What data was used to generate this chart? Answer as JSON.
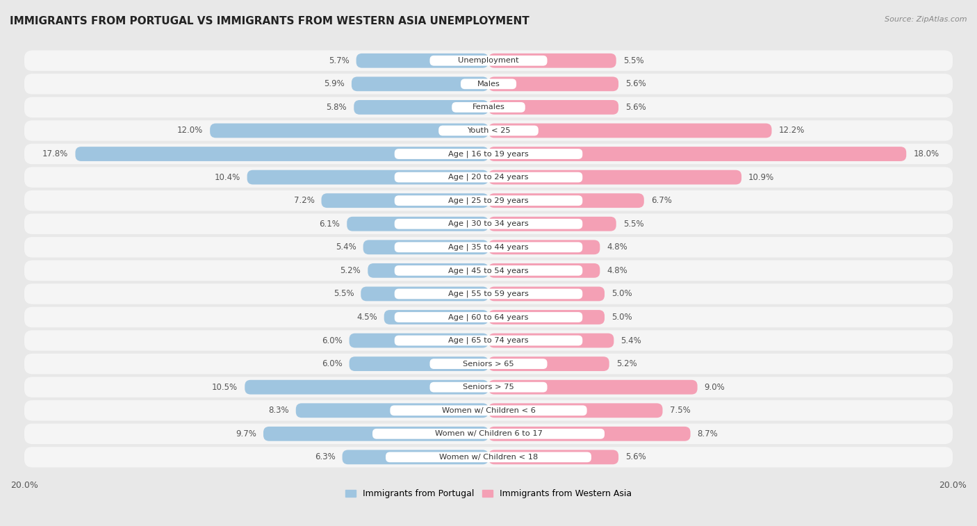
{
  "title": "IMMIGRANTS FROM PORTUGAL VS IMMIGRANTS FROM WESTERN ASIA UNEMPLOYMENT",
  "source": "Source: ZipAtlas.com",
  "categories": [
    "Unemployment",
    "Males",
    "Females",
    "Youth < 25",
    "Age | 16 to 19 years",
    "Age | 20 to 24 years",
    "Age | 25 to 29 years",
    "Age | 30 to 34 years",
    "Age | 35 to 44 years",
    "Age | 45 to 54 years",
    "Age | 55 to 59 years",
    "Age | 60 to 64 years",
    "Age | 65 to 74 years",
    "Seniors > 65",
    "Seniors > 75",
    "Women w/ Children < 6",
    "Women w/ Children 6 to 17",
    "Women w/ Children < 18"
  ],
  "portugal_values": [
    5.7,
    5.9,
    5.8,
    12.0,
    17.8,
    10.4,
    7.2,
    6.1,
    5.4,
    5.2,
    5.5,
    4.5,
    6.0,
    6.0,
    10.5,
    8.3,
    9.7,
    6.3
  ],
  "western_asia_values": [
    5.5,
    5.6,
    5.6,
    12.2,
    18.0,
    10.9,
    6.7,
    5.5,
    4.8,
    4.8,
    5.0,
    5.0,
    5.4,
    5.2,
    9.0,
    7.5,
    8.7,
    5.6
  ],
  "portugal_color": "#9fc5e0",
  "western_asia_color": "#f4a0b5",
  "background_color": "#e8e8e8",
  "bar_background_color": "#f5f5f5",
  "xlim": 20.0,
  "bar_height": 0.62,
  "label_portugal": "Immigrants from Portugal",
  "label_western_asia": "Immigrants from Western Asia",
  "value_color": "#555555",
  "label_color": "#333333"
}
